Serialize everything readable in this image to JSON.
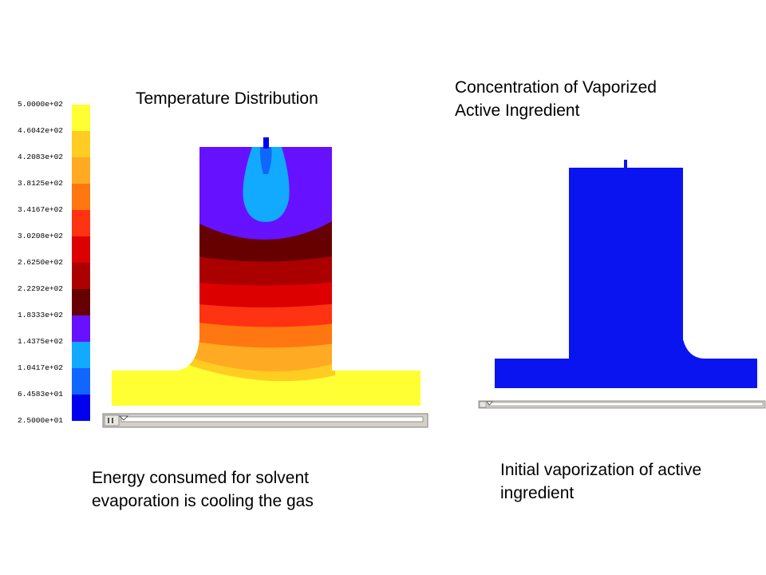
{
  "temperature_plot": {
    "title": "Temperature Distribution",
    "caption_lines": [
      "Energy consumed for solvent",
      "evaporation is cooling the gas"
    ]
  },
  "concentration_plot": {
    "title_lines": [
      "Concentration of Vaporized",
      "Active Ingredient"
    ],
    "caption_lines": [
      "Initial vaporization of active",
      "ingredient"
    ]
  },
  "legend": {
    "labels": [
      "5.0000e+02",
      "4.6042e+02",
      "4.2083e+02",
      "3.8125e+02",
      "3.4167e+02",
      "3.0208e+02",
      "2.6250e+02",
      "2.2292e+02",
      "1.8333e+02",
      "1.4375e+02",
      "1.0417e+02",
      "6.4583e+01",
      "2.5000e+01"
    ],
    "band_colors": [
      "#ffff33",
      "#ffcc22",
      "#ffaa22",
      "#ff7711",
      "#ff3311",
      "#dd0000",
      "#aa0000",
      "#660000",
      "#6611ff",
      "#11aaff",
      "#1166ff",
      "#0000ee"
    ]
  },
  "colors": {
    "jet_dark_blue": "#0000ee",
    "concentration_fill": "#0a14f0",
    "scrollbar_gray": "#d4d0c8"
  }
}
